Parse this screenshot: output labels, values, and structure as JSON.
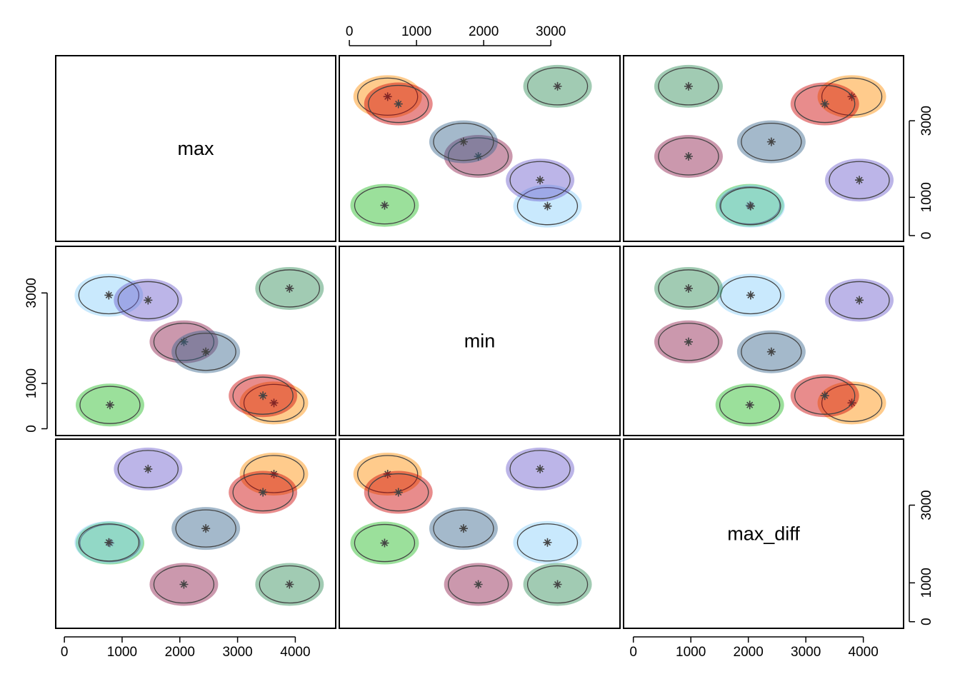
{
  "chart_data": {
    "type": "scatter-matrix",
    "variables": [
      {
        "name": "max",
        "lim": [
          -150,
          4700
        ],
        "xticks": [
          0,
          1000,
          2000,
          3000,
          4000
        ],
        "yticks": [
          0,
          1000,
          3000
        ]
      },
      {
        "name": "min",
        "lim": [
          -150,
          4030
        ],
        "xticks": [
          0,
          1000,
          2000,
          3000
        ],
        "yticks": [
          0,
          1000,
          3000
        ]
      },
      {
        "name": "max_diff",
        "lim": [
          -170,
          4700
        ],
        "xticks": [
          0,
          1000,
          2000,
          3000,
          4000
        ],
        "yticks": [
          0,
          1000,
          3000
        ]
      }
    ],
    "clusters": [
      {
        "color": "#22bb22",
        "values": [
          790,
          525,
          2025
        ]
      },
      {
        "color": "#87cefa",
        "values": [
          770,
          2950,
          2040
        ]
      },
      {
        "color": "#6a5acd",
        "values": [
          1450,
          2840,
          3930
        ]
      },
      {
        "color": "#2e8b57",
        "values": [
          3900,
          3100,
          960
        ]
      },
      {
        "color": "#ff8c00",
        "values": [
          3630,
          570,
          3800
        ]
      },
      {
        "color": "#cd0000",
        "values": [
          3440,
          730,
          3330
        ]
      },
      {
        "color": "#8b1a4a",
        "values": [
          2070,
          1920,
          960
        ]
      },
      {
        "color": "#36648b",
        "values": [
          2450,
          1700,
          2400
        ]
      }
    ]
  }
}
